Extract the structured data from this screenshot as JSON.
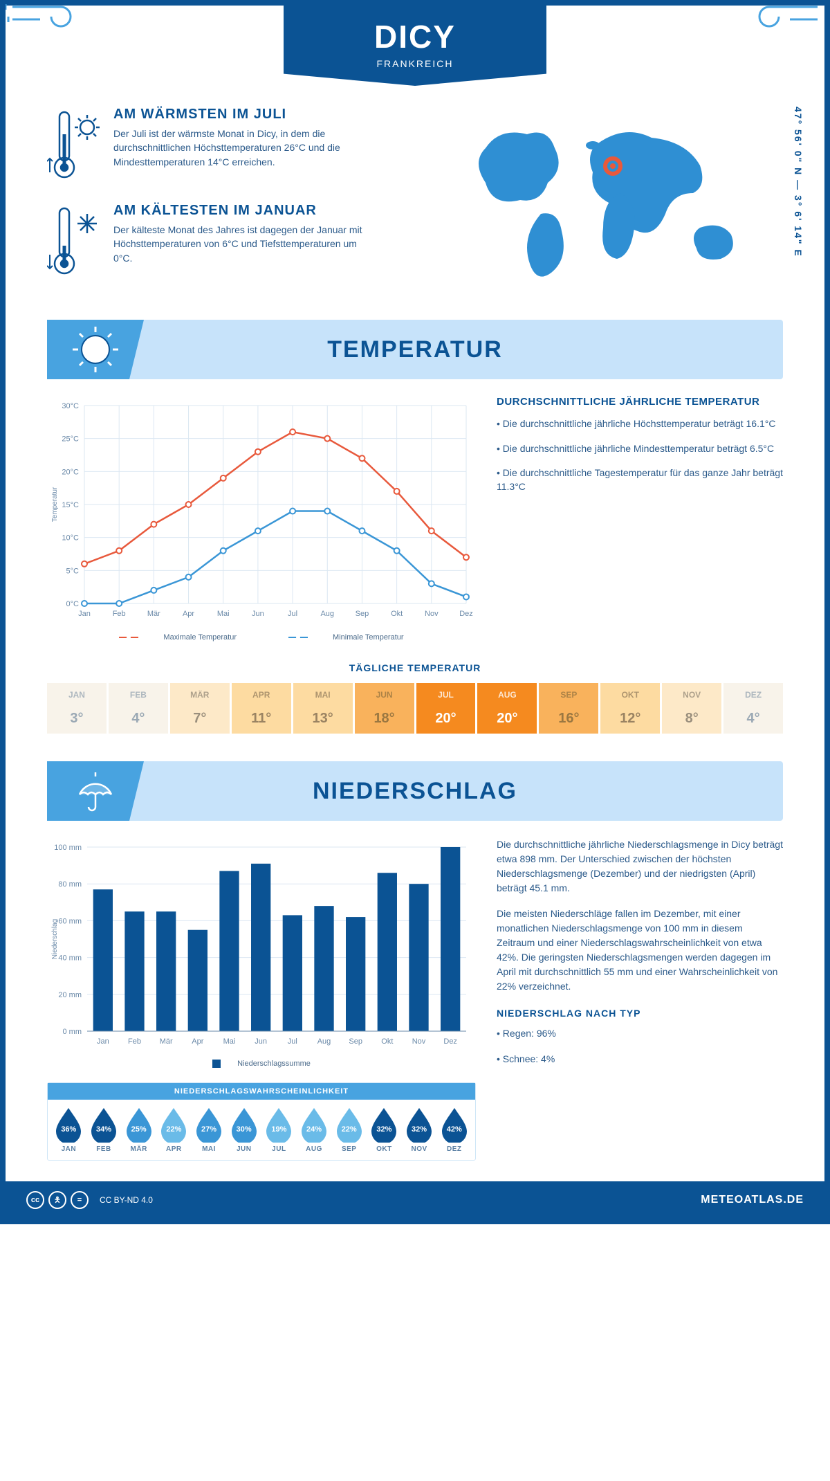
{
  "location": {
    "city": "DICY",
    "country": "FRANKREICH",
    "coords": "47° 56' 0\" N — 3° 6' 14\" E"
  },
  "colors": {
    "brand": "#0b5394",
    "accent": "#48a3e0",
    "band": "#c7e3fa",
    "max_line": "#e8593c",
    "min_line": "#3a96d6",
    "grid": "#dbe7f2",
    "bar": "#0b5394"
  },
  "summary": {
    "warm": {
      "title": "AM WÄRMSTEN IM JULI",
      "text": "Der Juli ist der wärmste Monat in Dicy, in dem die durchschnittlichen Höchsttemperaturen 26°C und die Mindesttemperaturen 14°C erreichen."
    },
    "cold": {
      "title": "AM KÄLTESTEN IM JANUAR",
      "text": "Der kälteste Monat des Jahres ist dagegen der Januar mit Höchsttemperaturen von 6°C und Tiefsttemperaturen um 0°C."
    }
  },
  "sections": {
    "temp": "TEMPERATUR",
    "precip": "NIEDERSCHLAG"
  },
  "months_short": [
    "Jan",
    "Feb",
    "Mär",
    "Apr",
    "Mai",
    "Jun",
    "Jul",
    "Aug",
    "Sep",
    "Okt",
    "Nov",
    "Dez"
  ],
  "months_upper": [
    "JAN",
    "FEB",
    "MÄR",
    "APR",
    "MAI",
    "JUN",
    "JUL",
    "AUG",
    "SEP",
    "OKT",
    "NOV",
    "DEZ"
  ],
  "temp_chart": {
    "type": "line",
    "ylabel": "Temperatur",
    "ylim": [
      0,
      30
    ],
    "ytick_step": 5,
    "max_series": [
      6,
      8,
      12,
      15,
      19,
      23,
      26,
      25,
      22,
      17,
      11,
      7
    ],
    "min_series": [
      0,
      0,
      2,
      4,
      8,
      11,
      14,
      14,
      11,
      8,
      3,
      1
    ],
    "legend": {
      "max": "Maximale Temperatur",
      "min": "Minimale Temperatur"
    }
  },
  "temp_info": {
    "title": "DURCHSCHNITTLICHE JÄHRLICHE TEMPERATUR",
    "items": [
      "• Die durchschnittliche jährliche Höchsttemperatur beträgt 16.1°C",
      "• Die durchschnittliche jährliche Mindesttemperatur beträgt 6.5°C",
      "• Die durchschnittliche Tagestemperatur für das ganze Jahr beträgt 11.3°C"
    ]
  },
  "daily": {
    "title": "TÄGLICHE TEMPERATUR",
    "values": [
      "3°",
      "4°",
      "7°",
      "11°",
      "13°",
      "18°",
      "20°",
      "20°",
      "16°",
      "12°",
      "8°",
      "4°"
    ],
    "cell_bg": [
      "#f8f3ea",
      "#f8f3ea",
      "#fde9c8",
      "#fddba1",
      "#fddba1",
      "#f9b25c",
      "#f58a1f",
      "#f58a1f",
      "#f9b25c",
      "#fddba1",
      "#fde9c8",
      "#f8f3ea"
    ],
    "cell_fg": [
      "#9aa8b4",
      "#9aa8b4",
      "#9a8f7d",
      "#9a8362",
      "#9a8362",
      "#9a7741",
      "#ffffff",
      "#ffffff",
      "#9a7741",
      "#9a8362",
      "#9a8f7d",
      "#9aa8b4"
    ]
  },
  "precip_chart": {
    "type": "bar",
    "ylabel": "Niederschlag",
    "ylim": [
      0,
      100
    ],
    "ytick_step": 20,
    "values": [
      77,
      65,
      65,
      55,
      87,
      91,
      63,
      68,
      62,
      86,
      80,
      100
    ],
    "legend": "Niederschlagssumme"
  },
  "precip_text": {
    "p1": "Die durchschnittliche jährliche Niederschlagsmenge in Dicy beträgt etwa 898 mm. Der Unterschied zwischen der höchsten Niederschlagsmenge (Dezember) und der niedrigsten (April) beträgt 45.1 mm.",
    "p2": "Die meisten Niederschläge fallen im Dezember, mit einer monatlichen Niederschlagsmenge von 100 mm in diesem Zeitraum und einer Niederschlagswahrscheinlichkeit von etwa 42%. Die geringsten Niederschlagsmengen werden dagegen im April mit durchschnittlich 55 mm und einer Wahrscheinlichkeit von 22% verzeichnet.",
    "type_title": "NIEDERSCHLAG NACH TYP",
    "type_items": [
      "• Regen: 96%",
      "• Schnee: 4%"
    ]
  },
  "prob": {
    "title": "NIEDERSCHLAGSWAHRSCHEINLICHKEIT",
    "values": [
      36,
      34,
      25,
      22,
      27,
      30,
      19,
      24,
      22,
      32,
      32,
      42
    ],
    "fills": [
      "#0b5394",
      "#0b5394",
      "#3a96d6",
      "#6abbe8",
      "#3a96d6",
      "#3a96d6",
      "#6abbe8",
      "#6abbe8",
      "#6abbe8",
      "#0b5394",
      "#0b5394",
      "#0b5394"
    ]
  },
  "footer": {
    "license": "CC BY-ND 4.0",
    "brand": "METEOATLAS.DE"
  }
}
